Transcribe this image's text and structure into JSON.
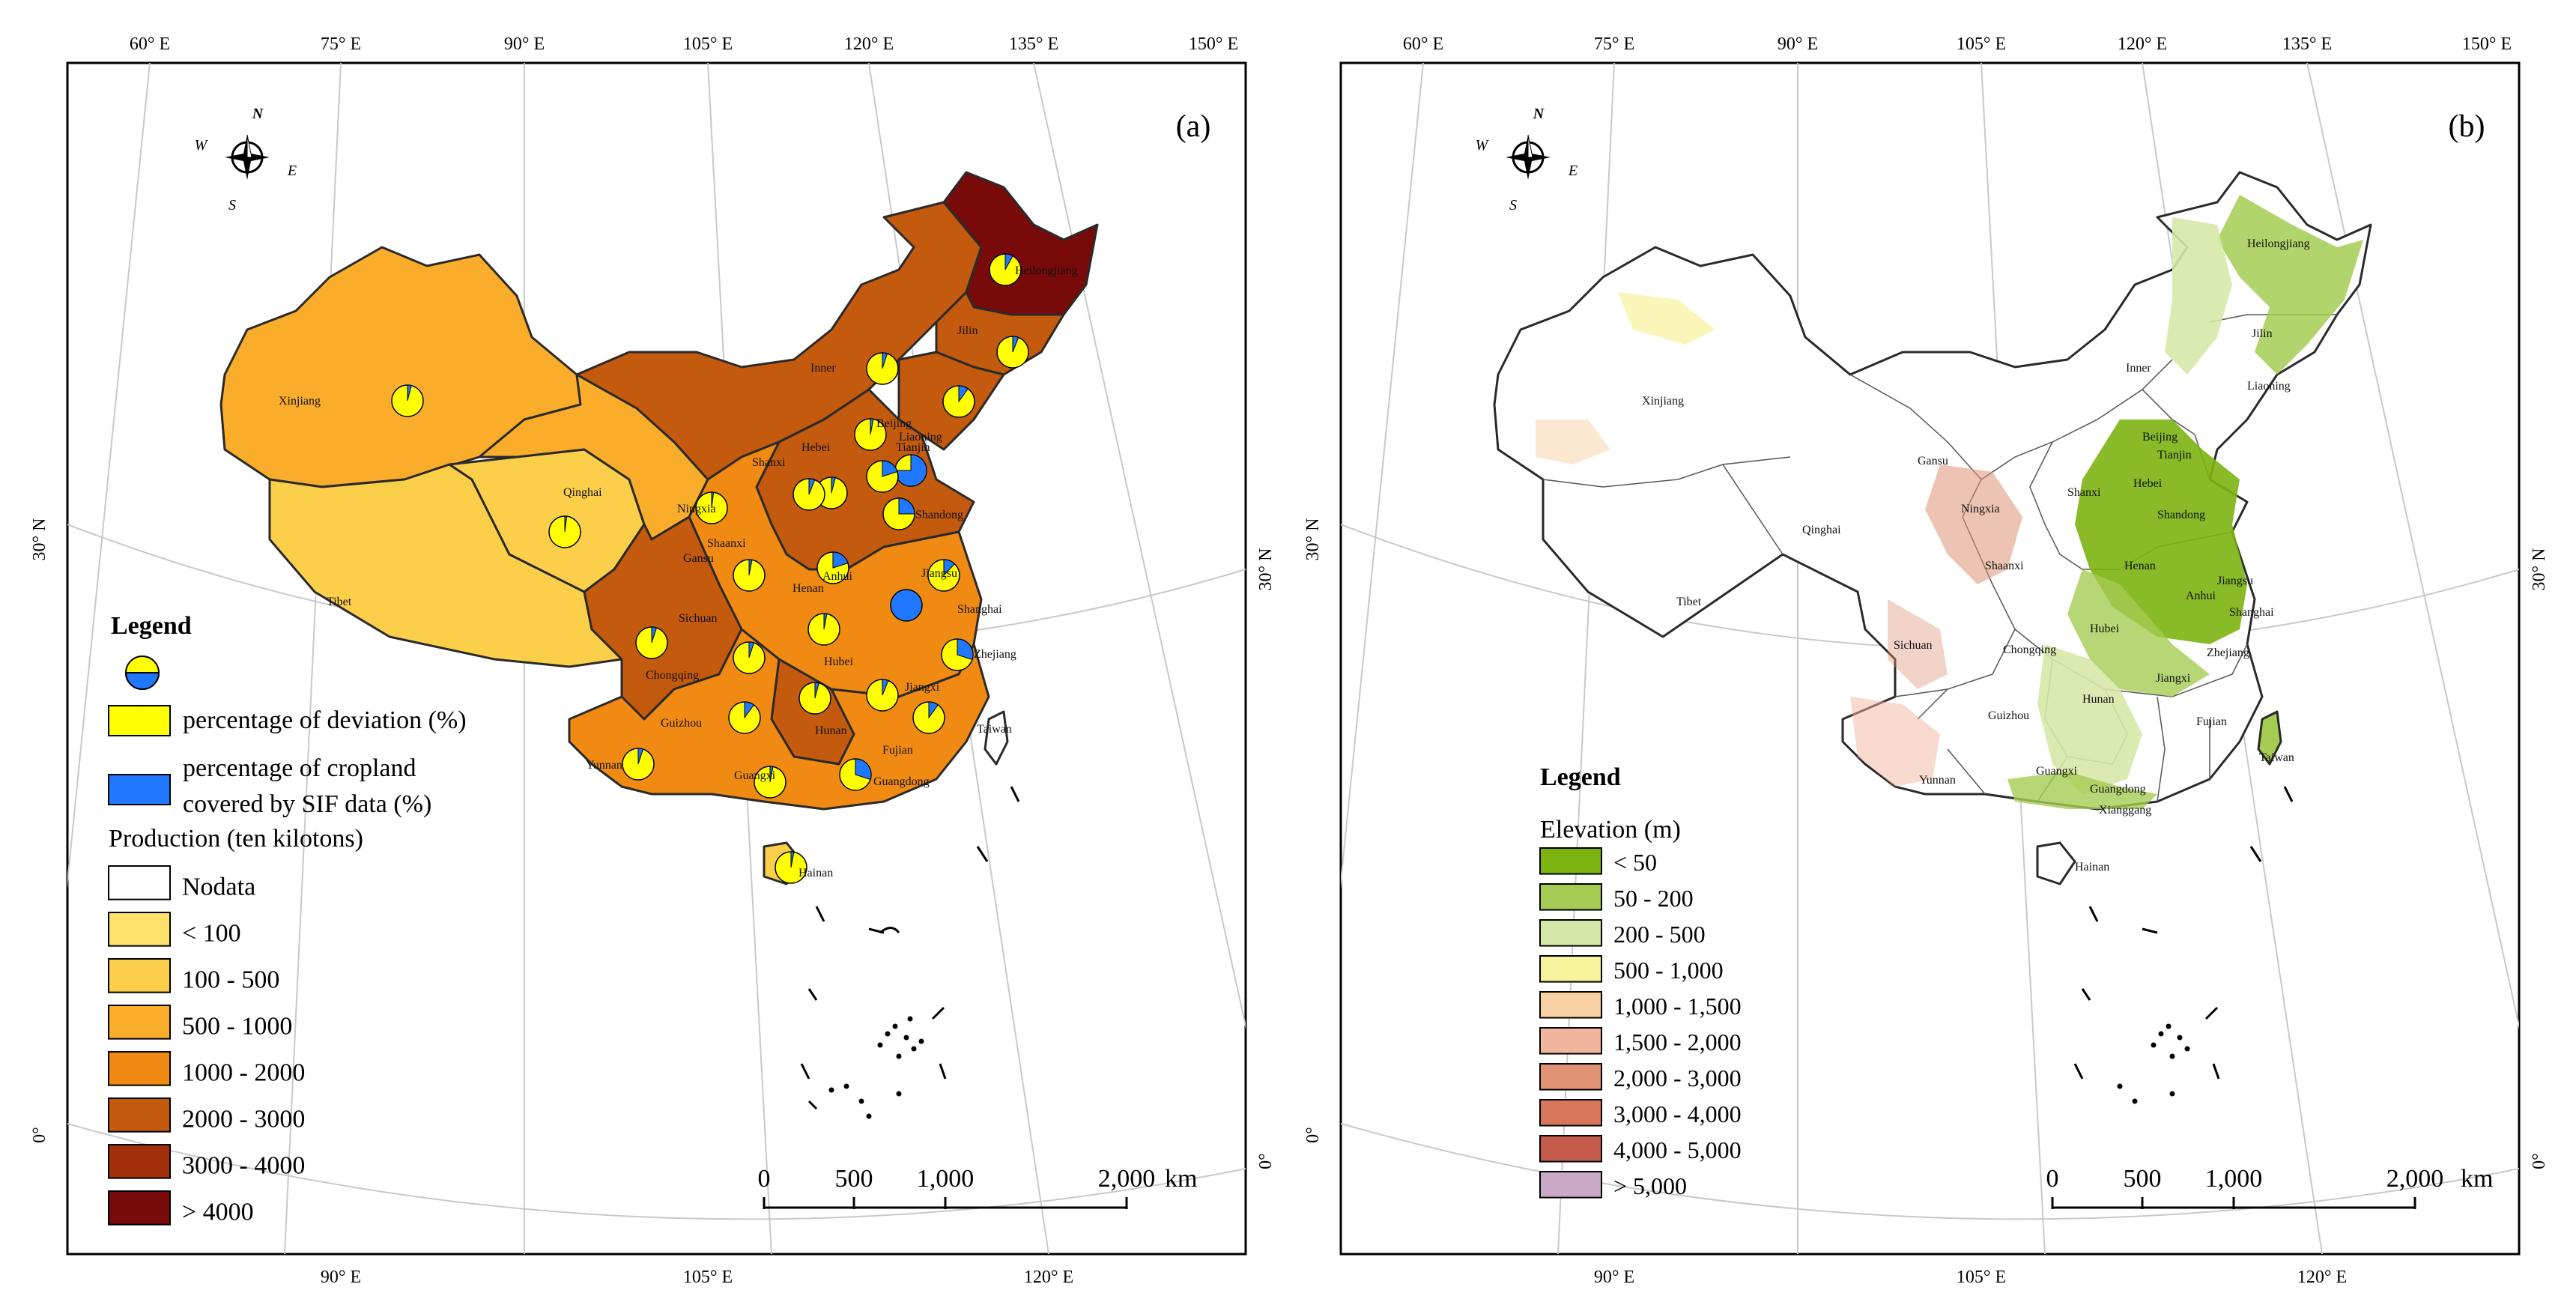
{
  "panel_a": {
    "label": "(a)",
    "top_ticks": [
      "60° E",
      "75° E",
      "90° E",
      "105° E",
      "120° E",
      "135° E",
      "150° E"
    ],
    "bottom_ticks": [
      "90° E",
      "105° E",
      "120° E"
    ],
    "left_ticks": [
      "30° N",
      "0°"
    ],
    "right_ticks": [
      "30° N",
      "0°"
    ],
    "compass": {
      "n": "N",
      "s": "S",
      "e": "E",
      "w": "W"
    },
    "provinces": [
      "Heilongjiang",
      "Jilin",
      "Inner",
      "Liaoning",
      "Xinjiang",
      "Hebei",
      "Beijing",
      "Tianjin",
      "Shanxi",
      "Shandong",
      "Ningxia",
      "Qinghai",
      "Shaanxi",
      "Gansu",
      "Henan",
      "Jiangsu",
      "Anhui",
      "Tibet",
      "Sichuan",
      "Shanghai",
      "Chongqing",
      "Hubei",
      "Zhejiang",
      "Jiangxi",
      "Guizhou",
      "Hunan",
      "Taiwan",
      "Yunnan",
      "Fujian",
      "Guangxi",
      "Guangdong",
      "Hainan"
    ],
    "legend": {
      "title": "Legend",
      "pie_items": [
        {
          "label": "percentage of deviation (%)",
          "color": "#ffff00"
        },
        {
          "label_line1": "percentage of cropland",
          "label_line2": "covered by SIF data (%)",
          "color": "#1f78ff"
        }
      ],
      "production_title": "Production (ten kilotons)",
      "classes": [
        {
          "label": "Nodata",
          "color": "#ffffff"
        },
        {
          "label": "< 100",
          "color": "#fde16b"
        },
        {
          "label": "100 - 500",
          "color": "#fccf4a"
        },
        {
          "label": "500 - 1000",
          "color": "#f9ad2a"
        },
        {
          "label": "1000 - 2000",
          "color": "#f08a13"
        },
        {
          "label": "2000 - 3000",
          "color": "#c45a0e"
        },
        {
          "label": "3000 - 4000",
          "color": "#a3300a"
        },
        {
          "label": "> 4000",
          "color": "#780a0a"
        }
      ]
    },
    "scalebar": {
      "ticks": [
        "0",
        "500",
        "1,000",
        "2,000"
      ],
      "unit": "km"
    }
  },
  "panel_b": {
    "label": "(b)",
    "top_ticks": [
      "60° E",
      "75° E",
      "90° E",
      "105° E",
      "120° E",
      "135° E",
      "150° E"
    ],
    "bottom_ticks": [
      "90° E",
      "105° E",
      "120° E"
    ],
    "left_ticks": [
      "30° N",
      "0°"
    ],
    "right_ticks": [
      "30° N",
      "0°"
    ],
    "compass": {
      "n": "N",
      "s": "S",
      "e": "E",
      "w": "W"
    },
    "provinces": [
      "Heilongjiang",
      "Jilin",
      "Inner",
      "Liaoning",
      "Xinjiang",
      "Gansu",
      "Beijing",
      "Tianjin",
      "Hebei",
      "Shanxi",
      "Ningxia",
      "Shandong",
      "Qinghai",
      "Shaanxi",
      "Henan",
      "Jiangsu",
      "Anhui",
      "Tibet",
      "Hubei",
      "Shanghai",
      "Sichuan",
      "Chongqing",
      "Zhejiang",
      "Hunan",
      "Jiangxi",
      "Fujian",
      "Guizhou",
      "Taiwan",
      "Yunnan",
      "Guangxi",
      "Guangdong",
      "Xianggang",
      "Hainan"
    ],
    "legend": {
      "title": "Legend",
      "elevation_title": "Elevation (m)",
      "classes": [
        {
          "label": "< 50",
          "color": "#7cb30f"
        },
        {
          "label": "50 - 200",
          "color": "#a5cc52"
        },
        {
          "label": "200 - 500",
          "color": "#d6e8a8"
        },
        {
          "label": "500 - 1,000",
          "color": "#f8f29c"
        },
        {
          "label": "1,000 - 1,500",
          "color": "#f7d1a4"
        },
        {
          "label": "1,500 - 2,000",
          "color": "#f2b59d"
        },
        {
          "label": "2,000 - 3,000",
          "color": "#df9274"
        },
        {
          "label": "3,000 - 4,000",
          "color": "#d7765b"
        },
        {
          "label": "4,000 - 5,000",
          "color": "#c55b4d"
        },
        {
          "label": "> 5,000",
          "color": "#c9a8c8"
        }
      ]
    },
    "scalebar": {
      "ticks": [
        "0",
        "500",
        "1,000",
        "2,000"
      ],
      "unit": "km"
    }
  }
}
